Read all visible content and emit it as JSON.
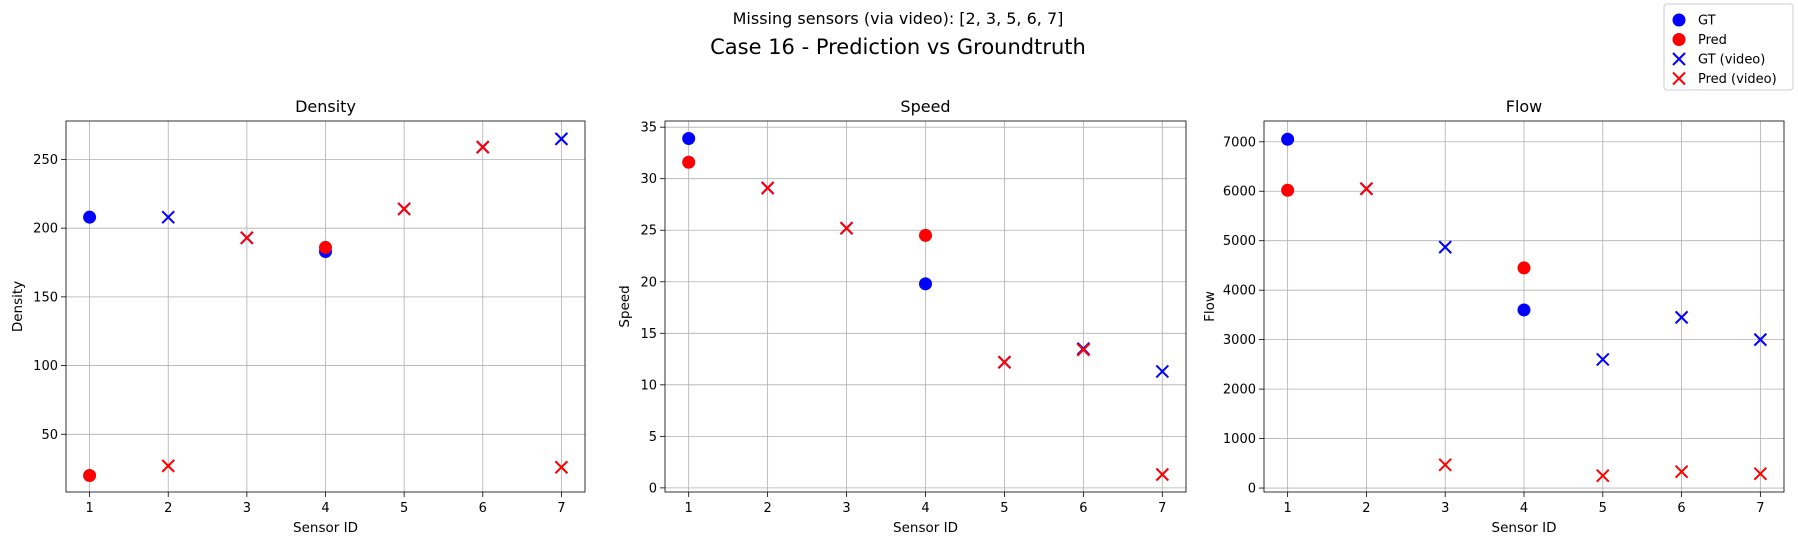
{
  "figure": {
    "subtitle": "Missing sensors (via video): [2, 3, 5, 6, 7]",
    "title": "Case 16 - Prediction vs Groundtruth"
  },
  "legend": {
    "placement": "top-right",
    "entries": [
      {
        "label": "GT",
        "marker": "circle",
        "color": "#0000ff"
      },
      {
        "label": "Pred",
        "marker": "circle",
        "color": "#ff0000"
      },
      {
        "label": "GT (video)",
        "marker": "x",
        "color": "#0000ff"
      },
      {
        "label": "Pred (video)",
        "marker": "x",
        "color": "#ff0000"
      }
    ]
  },
  "colors": {
    "gt": "#0000ff",
    "pred": "#ff0000"
  },
  "chart_data": [
    {
      "type": "scatter",
      "title": "Density",
      "xlabel": "Sensor ID",
      "ylabel": "Density",
      "xlim": [
        0.7,
        7.3
      ],
      "ylim": [
        8,
        278
      ],
      "xticks": [
        1,
        2,
        3,
        4,
        5,
        6,
        7
      ],
      "yticks": [
        50,
        100,
        150,
        200,
        250
      ],
      "grid": true,
      "series": [
        {
          "name": "GT",
          "marker": "circle",
          "color": "#0000ff",
          "points": [
            {
              "x": 1,
              "y": 208
            },
            {
              "x": 4,
              "y": 183
            }
          ]
        },
        {
          "name": "Pred",
          "marker": "circle",
          "color": "#ff0000",
          "points": [
            {
              "x": 1,
              "y": 20
            },
            {
              "x": 4,
              "y": 186
            }
          ]
        },
        {
          "name": "GT (video)",
          "marker": "x",
          "color": "#0000ff",
          "points": [
            {
              "x": 2,
              "y": 208
            },
            {
              "x": 3,
              "y": 193
            },
            {
              "x": 5,
              "y": 214
            },
            {
              "x": 6,
              "y": 259
            },
            {
              "x": 7,
              "y": 265
            }
          ]
        },
        {
          "name": "Pred (video)",
          "marker": "x",
          "color": "#ff0000",
          "points": [
            {
              "x": 2,
              "y": 27
            },
            {
              "x": 3,
              "y": 193
            },
            {
              "x": 5,
              "y": 214
            },
            {
              "x": 6,
              "y": 259
            },
            {
              "x": 7,
              "y": 26
            }
          ]
        }
      ]
    },
    {
      "type": "scatter",
      "title": "Speed",
      "xlabel": "Sensor ID",
      "ylabel": "Speed",
      "xlim": [
        0.7,
        7.3
      ],
      "ylim": [
        -0.4,
        35.6
      ],
      "xticks": [
        1,
        2,
        3,
        4,
        5,
        6,
        7
      ],
      "yticks": [
        0,
        5,
        10,
        15,
        20,
        25,
        30,
        35
      ],
      "grid": true,
      "series": [
        {
          "name": "GT",
          "marker": "circle",
          "color": "#0000ff",
          "points": [
            {
              "x": 1,
              "y": 33.9
            },
            {
              "x": 4,
              "y": 19.8
            }
          ]
        },
        {
          "name": "Pred",
          "marker": "circle",
          "color": "#ff0000",
          "points": [
            {
              "x": 1,
              "y": 31.6
            },
            {
              "x": 4,
              "y": 24.5
            }
          ]
        },
        {
          "name": "GT (video)",
          "marker": "x",
          "color": "#0000ff",
          "points": [
            {
              "x": 2,
              "y": 29.1
            },
            {
              "x": 3,
              "y": 25.2
            },
            {
              "x": 5,
              "y": 12.2
            },
            {
              "x": 6,
              "y": 13.5
            },
            {
              "x": 7,
              "y": 11.3
            }
          ]
        },
        {
          "name": "Pred (video)",
          "marker": "x",
          "color": "#ff0000",
          "points": [
            {
              "x": 2,
              "y": 29.1
            },
            {
              "x": 3,
              "y": 25.2
            },
            {
              "x": 5,
              "y": 12.2
            },
            {
              "x": 6,
              "y": 13.4
            },
            {
              "x": 7,
              "y": 1.3
            }
          ]
        }
      ]
    },
    {
      "type": "scatter",
      "title": "Flow",
      "xlabel": "Sensor ID",
      "ylabel": "Flow",
      "xlim": [
        0.7,
        7.3
      ],
      "ylim": [
        -80,
        7420
      ],
      "xticks": [
        1,
        2,
        3,
        4,
        5,
        6,
        7
      ],
      "yticks": [
        0,
        1000,
        2000,
        3000,
        4000,
        5000,
        6000,
        7000
      ],
      "grid": true,
      "series": [
        {
          "name": "GT",
          "marker": "circle",
          "color": "#0000ff",
          "points": [
            {
              "x": 1,
              "y": 7050
            },
            {
              "x": 4,
              "y": 3600
            }
          ]
        },
        {
          "name": "Pred",
          "marker": "circle",
          "color": "#ff0000",
          "points": [
            {
              "x": 1,
              "y": 6020
            },
            {
              "x": 4,
              "y": 4450
            }
          ]
        },
        {
          "name": "GT (video)",
          "marker": "x",
          "color": "#0000ff",
          "points": [
            {
              "x": 2,
              "y": 6050
            },
            {
              "x": 3,
              "y": 4870
            },
            {
              "x": 5,
              "y": 2600
            },
            {
              "x": 6,
              "y": 3450
            },
            {
              "x": 7,
              "y": 3000
            }
          ]
        },
        {
          "name": "Pred (video)",
          "marker": "x",
          "color": "#ff0000",
          "points": [
            {
              "x": 2,
              "y": 6050
            },
            {
              "x": 3,
              "y": 470
            },
            {
              "x": 5,
              "y": 250
            },
            {
              "x": 6,
              "y": 330
            },
            {
              "x": 7,
              "y": 290
            }
          ]
        }
      ]
    }
  ]
}
